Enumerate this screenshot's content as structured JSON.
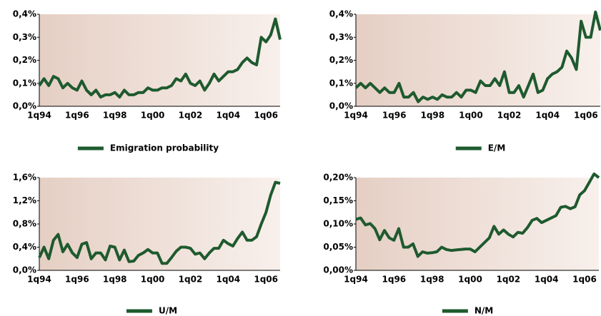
{
  "chart_data": [
    {
      "type": "line",
      "categories": [
        "1q94",
        null,
        null,
        null,
        null,
        null,
        null,
        null,
        "1q96",
        null,
        null,
        null,
        null,
        null,
        null,
        null,
        "1q98",
        null,
        null,
        null,
        null,
        null,
        null,
        null,
        "1q00",
        null,
        null,
        null,
        null,
        null,
        null,
        null,
        "1q02",
        null,
        null,
        null,
        null,
        null,
        null,
        null,
        "1q04",
        null,
        null,
        null,
        null,
        null,
        null,
        null,
        "1q06",
        null,
        null,
        null
      ],
      "series": [
        {
          "name": "Emigration probability",
          "color": "#1e5a2e",
          "values": [
            0.09,
            0.12,
            0.09,
            0.13,
            0.12,
            0.08,
            0.1,
            0.08,
            0.07,
            0.11,
            0.07,
            0.05,
            0.07,
            0.04,
            0.05,
            0.05,
            0.06,
            0.04,
            0.07,
            0.05,
            0.05,
            0.06,
            0.06,
            0.08,
            0.07,
            0.07,
            0.08,
            0.08,
            0.09,
            0.12,
            0.11,
            0.14,
            0.1,
            0.09,
            0.11,
            0.07,
            0.1,
            0.14,
            0.11,
            0.13,
            0.15,
            0.15,
            0.16,
            0.19,
            0.21,
            0.19,
            0.18,
            0.3,
            0.28,
            0.31,
            0.38,
            0.29
          ]
        }
      ],
      "ylim": [
        0,
        0.4
      ],
      "yticks": [
        {
          "value": 0,
          "label": "0,0%"
        },
        {
          "value": 0.1,
          "label": "0,1%"
        },
        {
          "value": 0.2,
          "label": "0,2%"
        },
        {
          "value": 0.3,
          "label": "0,3%"
        },
        {
          "value": 0.4,
          "label": "0,4%"
        }
      ]
    },
    {
      "type": "line",
      "categories": [
        "1q94",
        null,
        null,
        null,
        null,
        null,
        null,
        null,
        "1q96",
        null,
        null,
        null,
        null,
        null,
        null,
        null,
        "1q98",
        null,
        null,
        null,
        null,
        null,
        null,
        null,
        "1q00",
        null,
        null,
        null,
        null,
        null,
        null,
        null,
        "1q02",
        null,
        null,
        null,
        null,
        null,
        null,
        null,
        "1q04",
        null,
        null,
        null,
        null,
        null,
        null,
        null,
        "1q06",
        null,
        null,
        null
      ],
      "series": [
        {
          "name": "E/M",
          "color": "#1e5a2e",
          "values": [
            0.08,
            0.1,
            0.08,
            0.1,
            0.08,
            0.06,
            0.08,
            0.06,
            0.06,
            0.1,
            0.04,
            0.04,
            0.06,
            0.02,
            0.04,
            0.03,
            0.04,
            0.03,
            0.05,
            0.04,
            0.04,
            0.06,
            0.04,
            0.07,
            0.07,
            0.06,
            0.11,
            0.09,
            0.09,
            0.12,
            0.09,
            0.15,
            0.06,
            0.06,
            0.09,
            0.04,
            0.09,
            0.14,
            0.06,
            0.07,
            0.12,
            0.14,
            0.15,
            0.17,
            0.24,
            0.21,
            0.16,
            0.37,
            0.3,
            0.3,
            0.41,
            0.33
          ]
        }
      ],
      "ylim": [
        0,
        0.4
      ],
      "yticks": [
        {
          "value": 0,
          "label": "0,0%"
        },
        {
          "value": 0.1,
          "label": "0,1%"
        },
        {
          "value": 0.2,
          "label": "0,2%"
        },
        {
          "value": 0.3,
          "label": "0,3%"
        },
        {
          "value": 0.4,
          "label": "0,4%"
        }
      ]
    },
    {
      "type": "line",
      "categories": [
        "1q94",
        null,
        null,
        null,
        null,
        null,
        null,
        null,
        "1q96",
        null,
        null,
        null,
        null,
        null,
        null,
        null,
        "1q98",
        null,
        null,
        null,
        null,
        null,
        null,
        null,
        "1q00",
        null,
        null,
        null,
        null,
        null,
        null,
        null,
        "1q02",
        null,
        null,
        null,
        null,
        null,
        null,
        null,
        "1q04",
        null,
        null,
        null,
        null,
        null,
        null,
        null,
        "1q06",
        null,
        null,
        null
      ],
      "series": [
        {
          "name": "U/M",
          "color": "#1e5a2e",
          "values": [
            0.22,
            0.4,
            0.2,
            0.52,
            0.62,
            0.32,
            0.45,
            0.3,
            0.22,
            0.45,
            0.48,
            0.2,
            0.3,
            0.3,
            0.18,
            0.42,
            0.4,
            0.18,
            0.35,
            0.15,
            0.16,
            0.26,
            0.3,
            0.36,
            0.3,
            0.3,
            0.12,
            0.12,
            0.22,
            0.33,
            0.4,
            0.4,
            0.38,
            0.28,
            0.3,
            0.2,
            0.3,
            0.38,
            0.38,
            0.52,
            0.46,
            0.42,
            0.55,
            0.66,
            0.52,
            0.52,
            0.58,
            0.8,
            1.0,
            1.3,
            1.52,
            1.5
          ]
        }
      ],
      "ylim": [
        0,
        1.6
      ],
      "yticks": [
        {
          "value": 0,
          "label": "0,0%"
        },
        {
          "value": 0.4,
          "label": "0,4%"
        },
        {
          "value": 0.8,
          "label": "0,8%"
        },
        {
          "value": 1.2,
          "label": "1,2%"
        },
        {
          "value": 1.6,
          "label": "1,6%"
        }
      ]
    },
    {
      "type": "line",
      "categories": [
        "1q94",
        null,
        null,
        null,
        null,
        null,
        null,
        null,
        "1q96",
        null,
        null,
        null,
        null,
        null,
        null,
        null,
        "1q98",
        null,
        null,
        null,
        null,
        null,
        null,
        null,
        "1q00",
        null,
        null,
        null,
        null,
        null,
        null,
        null,
        "1q02",
        null,
        null,
        null,
        null,
        null,
        null,
        null,
        "1q04",
        null,
        null,
        null,
        null,
        null,
        null,
        null,
        "1q06",
        null,
        null,
        null
      ],
      "series": [
        {
          "name": "N/M",
          "color": "#1e5a2e",
          "values": [
            0.11,
            0.113,
            0.098,
            0.101,
            0.09,
            0.066,
            0.086,
            0.07,
            0.065,
            0.09,
            0.05,
            0.05,
            0.057,
            0.03,
            0.04,
            0.037,
            0.038,
            0.04,
            0.05,
            0.045,
            0.043,
            0.044,
            0.045,
            0.046,
            0.046,
            0.04,
            0.05,
            0.06,
            0.07,
            0.095,
            0.078,
            0.087,
            0.078,
            0.072,
            0.082,
            0.08,
            0.092,
            0.108,
            0.112,
            0.103,
            0.108,
            0.113,
            0.118,
            0.136,
            0.138,
            0.133,
            0.137,
            0.163,
            0.172,
            0.19,
            0.208,
            0.2
          ]
        }
      ],
      "ylim": [
        0,
        0.2
      ],
      "yticks": [
        {
          "value": 0,
          "label": "0,00%"
        },
        {
          "value": 0.05,
          "label": "0,05%"
        },
        {
          "value": 0.1,
          "label": "0,10%"
        },
        {
          "value": 0.15,
          "label": "0,15%"
        },
        {
          "value": 0.2,
          "label": "0,20%"
        }
      ]
    }
  ]
}
